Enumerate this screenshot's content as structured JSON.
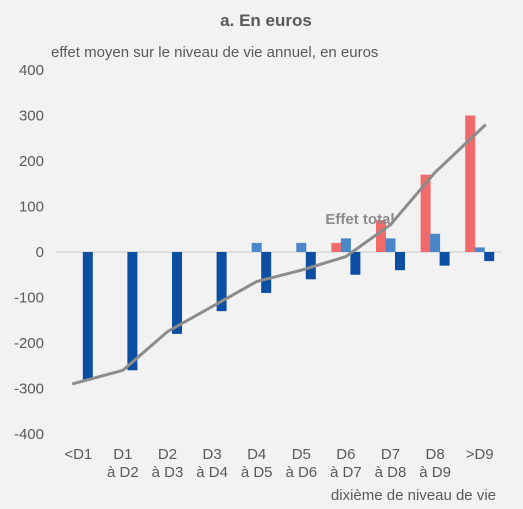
{
  "chart_data": {
    "type": "bar",
    "title": "a. En euros",
    "ylabel": "effet moyen sur le niveau de vie annuel, en euros",
    "xlabel": "dixième de niveau de vie",
    "ylim": [
      -400,
      400
    ],
    "yticks": [
      -400,
      -300,
      -200,
      -100,
      0,
      100,
      200,
      300,
      400
    ],
    "categories": [
      [
        "<D1"
      ],
      [
        "D1",
        "à D2"
      ],
      [
        "D2",
        "à D3"
      ],
      [
        "D3",
        "à D4"
      ],
      [
        "D4",
        "à D5"
      ],
      [
        "D5",
        "à D6"
      ],
      [
        "D6",
        "à D7"
      ],
      [
        "D7",
        "à D8"
      ],
      [
        "D8",
        "à D9"
      ],
      [
        ">D9"
      ]
    ],
    "series": [
      {
        "type": "bar",
        "color": "#f26b6b",
        "values": [
          0,
          0,
          0,
          0,
          0,
          0,
          20,
          70,
          170,
          300
        ]
      },
      {
        "type": "bar",
        "color": "#4a86c8",
        "values": [
          0,
          0,
          0,
          0,
          20,
          20,
          30,
          30,
          40,
          10
        ]
      },
      {
        "type": "bar",
        "color": "#0b4ea2",
        "values": [
          -280,
          -260,
          -180,
          -130,
          -90,
          -60,
          -50,
          -40,
          -30,
          -20
        ]
      },
      {
        "type": "line",
        "name": "Effet total",
        "color": "#8c8c8c",
        "values": [
          -290,
          -260,
          -175,
          -120,
          -65,
          -40,
          -10,
          60,
          175,
          280
        ]
      }
    ],
    "grid": false
  }
}
